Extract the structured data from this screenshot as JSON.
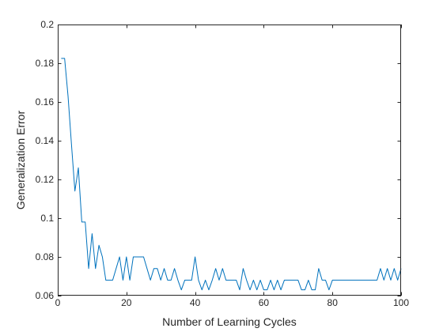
{
  "chart_data": {
    "type": "line",
    "title": "",
    "xlabel": "Number of Learning Cycles",
    "ylabel": "Generalization Error",
    "xlim": [
      0,
      100
    ],
    "ylim": [
      0.06,
      0.2
    ],
    "xticks": [
      0,
      20,
      40,
      60,
      80,
      100
    ],
    "xtick_labels": [
      "0",
      "20",
      "40",
      "60",
      "80",
      "100"
    ],
    "yticks": [
      0.06,
      0.08,
      0.1,
      0.12,
      0.14,
      0.16,
      0.18,
      0.2
    ],
    "ytick_labels": [
      "0.06",
      "0.08",
      "0.1",
      "0.12",
      "0.14",
      "0.16",
      "0.18",
      "0.2"
    ],
    "grid": false,
    "line_color": "#0072BD",
    "x": [
      1,
      2,
      3,
      4,
      5,
      6,
      7,
      8,
      9,
      10,
      11,
      12,
      13,
      14,
      15,
      16,
      17,
      18,
      19,
      20,
      21,
      22,
      23,
      24,
      25,
      26,
      27,
      28,
      29,
      30,
      31,
      32,
      33,
      34,
      35,
      36,
      37,
      38,
      39,
      40,
      41,
      42,
      43,
      44,
      45,
      46,
      47,
      48,
      49,
      50,
      51,
      52,
      53,
      54,
      55,
      56,
      57,
      58,
      59,
      60,
      61,
      62,
      63,
      64,
      65,
      66,
      67,
      68,
      69,
      70,
      71,
      72,
      73,
      74,
      75,
      76,
      77,
      78,
      79,
      80,
      81,
      82,
      83,
      84,
      85,
      86,
      87,
      88,
      89,
      90,
      91,
      92,
      93,
      94,
      95,
      96,
      97,
      98,
      99,
      100
    ],
    "values": [
      0.1825,
      0.1825,
      0.163,
      0.138,
      0.114,
      0.126,
      0.098,
      0.098,
      0.074,
      0.092,
      0.074,
      0.086,
      0.08,
      0.068,
      0.068,
      0.068,
      0.074,
      0.08,
      0.068,
      0.08,
      0.068,
      0.08,
      0.08,
      0.08,
      0.08,
      0.074,
      0.068,
      0.074,
      0.074,
      0.068,
      0.074,
      0.068,
      0.068,
      0.074,
      0.068,
      0.063,
      0.068,
      0.068,
      0.068,
      0.08,
      0.068,
      0.063,
      0.068,
      0.063,
      0.068,
      0.074,
      0.068,
      0.074,
      0.068,
      0.068,
      0.068,
      0.068,
      0.063,
      0.074,
      0.068,
      0.063,
      0.068,
      0.063,
      0.068,
      0.063,
      0.063,
      0.068,
      0.063,
      0.068,
      0.063,
      0.068,
      0.068,
      0.068,
      0.068,
      0.068,
      0.063,
      0.063,
      0.068,
      0.063,
      0.063,
      0.074,
      0.068,
      0.068,
      0.063,
      0.068,
      0.068,
      0.068,
      0.068,
      0.068,
      0.068,
      0.068,
      0.068,
      0.068,
      0.068,
      0.068,
      0.068,
      0.068,
      0.068,
      0.074,
      0.068,
      0.074,
      0.068,
      0.074,
      0.068,
      0.074
    ]
  }
}
